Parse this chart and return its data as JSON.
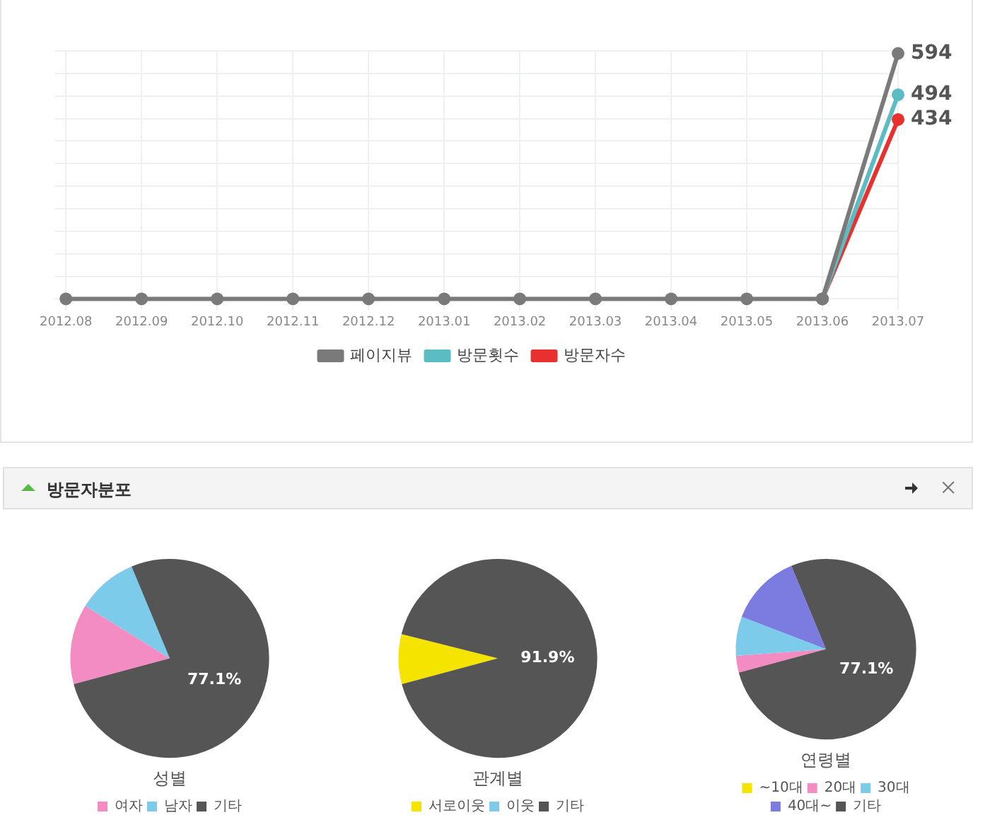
{
  "chart_data": [
    {
      "type": "line",
      "categories": [
        "2012.08",
        "2012.09",
        "2012.10",
        "2012.11",
        "2012.12",
        "2013.01",
        "2013.02",
        "2013.03",
        "2013.04",
        "2013.05",
        "2013.06",
        "2013.07"
      ],
      "series": [
        {
          "name": "방문자수",
          "color": "#e8302f",
          "values": [
            null,
            null,
            null,
            null,
            null,
            null,
            null,
            null,
            null,
            null,
            0,
            434
          ],
          "value_labels": [
            null,
            null,
            null,
            null,
            null,
            null,
            null,
            null,
            null,
            null,
            null,
            "434"
          ]
        },
        {
          "name": "방문횟수",
          "color": "#5bbcc4",
          "values": [
            null,
            null,
            null,
            null,
            null,
            null,
            null,
            null,
            null,
            null,
            0,
            494
          ],
          "value_labels": [
            null,
            null,
            null,
            null,
            null,
            null,
            null,
            null,
            null,
            null,
            null,
            "494"
          ]
        },
        {
          "name": "페이지뷰",
          "color": "#7a7a7a",
          "values": [
            0,
            0,
            0,
            0,
            0,
            0,
            0,
            0,
            0,
            0,
            0,
            594
          ],
          "value_labels": [
            null,
            null,
            null,
            null,
            null,
            null,
            null,
            null,
            null,
            null,
            null,
            "594"
          ]
        }
      ],
      "grid": true,
      "legend": "bottom",
      "marker": "circle",
      "tick_labels": "x"
    },
    {
      "type": "pie",
      "title": "성별",
      "annotations": [
        "방문자분포"
      ],
      "categories": [
        "여자",
        "남자",
        "기타"
      ],
      "values": [
        13,
        9.9,
        77.1
      ],
      "colors": [
        "#f48cc4",
        "#7ccbea",
        "#555555"
      ],
      "value_labels": [
        null,
        null,
        "77.1%"
      ],
      "legend": "bottom"
    },
    {
      "type": "pie",
      "title": "관계별",
      "categories": [
        "서로이웃",
        "이웃",
        "기타"
      ],
      "values": [
        8.1,
        0,
        91.9
      ],
      "colors": [
        "#f5e400",
        "#7ccbea",
        "#555555"
      ],
      "value_labels": [
        null,
        null,
        "91.9%"
      ],
      "legend": "bottom"
    },
    {
      "type": "pie",
      "title": "연령별",
      "categories": [
        "~10대",
        "20대",
        "30대",
        "40대~",
        "기타"
      ],
      "values": [
        0,
        3,
        7,
        12.9,
        77.1
      ],
      "colors": [
        "#f5e400",
        "#f48cc4",
        "#7ccbea",
        "#7b7be0",
        "#555555"
      ],
      "value_labels": [
        null,
        null,
        null,
        null,
        "77.1%"
      ],
      "legend": "bottom"
    }
  ]
}
